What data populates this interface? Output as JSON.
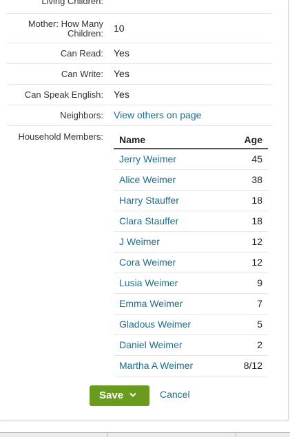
{
  "details": {
    "living_children_label": "Living Children:",
    "mother_label": "Mother: How Many Children:",
    "mother_value": "10",
    "can_read_label": "Can Read:",
    "can_read_value": "Yes",
    "can_write_label": "Can Write:",
    "can_write_value": "Yes",
    "can_speak_label": "Can Speak English:",
    "can_speak_value": "Yes",
    "neighbors_label": "Neighbors:",
    "neighbors_link": "View others on page",
    "household_label": "Household Members:"
  },
  "household": {
    "columns": {
      "name": "Name",
      "age": "Age"
    },
    "members": [
      {
        "name": "Jerry Weimer",
        "age": "45"
      },
      {
        "name": "Alice Weimer",
        "age": "38"
      },
      {
        "name": "Harry Stauffer",
        "age": "18"
      },
      {
        "name": "Clara Stauffer",
        "age": "18"
      },
      {
        "name": "J Weimer",
        "age": "12"
      },
      {
        "name": "Cora Weimer",
        "age": "12"
      },
      {
        "name": "Lusia Weimer",
        "age": "9"
      },
      {
        "name": "Emma Weimer",
        "age": "7"
      },
      {
        "name": "Gladous Weimer",
        "age": "5"
      },
      {
        "name": "Daniel Weimer",
        "age": "2"
      },
      {
        "name": "Martha A Weimer",
        "age": "8/12"
      }
    ]
  },
  "actions": {
    "save_label": "Save",
    "save_icon": "chevron-down-icon",
    "cancel_label": "Cancel"
  },
  "colors": {
    "accent": "#6a9a1e",
    "link": "#1a6e8e"
  }
}
